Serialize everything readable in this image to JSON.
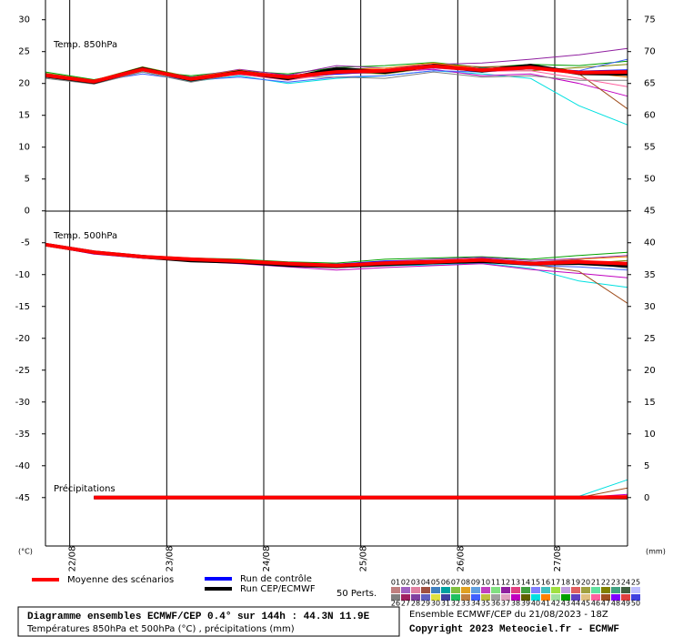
{
  "chart_data": {
    "type": "line",
    "title": "Diagramme ensembles ECMWF/CEP 0.4° sur 144h : 44.3N 11.9E",
    "subtitle": "Températures 850hPa et 500hPa (°C) , précipitations (mm)",
    "run_info": "Ensemble ECMWF/CEP du 21/08/2023 - 18Z",
    "copyright": "Copyright 2023 Meteociel.fr - ECMWF",
    "y_label": "(°C)",
    "y2_label": "(mm)",
    "x": [
      0,
      12,
      24,
      36,
      48,
      60,
      72,
      84,
      96,
      108,
      120,
      132,
      144
    ],
    "xlim": [
      0,
      144
    ],
    "xticks": [
      {
        "value": 6,
        "label": "22/08"
      },
      {
        "value": 30,
        "label": "23/08"
      },
      {
        "value": 54,
        "label": "24/08"
      },
      {
        "value": 78,
        "label": "25/08"
      },
      {
        "value": 102,
        "label": "26/08"
      },
      {
        "value": 126,
        "label": "27/08"
      }
    ],
    "ylim": [
      -52.6,
      33.1
    ],
    "yticks": [
      30,
      25,
      20,
      15,
      10,
      5,
      0,
      -5,
      -10,
      -15,
      -20,
      -25,
      -30,
      -35,
      -40,
      -45
    ],
    "y2lim": [
      -7.6,
      78.1
    ],
    "y2ticks": [
      75,
      70,
      65,
      60,
      55,
      50,
      45,
      40,
      35,
      30,
      25,
      20,
      15,
      10,
      5,
      0
    ],
    "panels": [
      {
        "label": "Temp. 850hPa",
        "series": [
          {
            "color": "#00a000",
            "values": [
              21.8,
              20.6,
              22.0,
              21.2,
              22.0,
              21.5,
              22.5,
              22.8,
              23.3,
              22.5,
              23.0,
              22.8,
              23.5
            ]
          },
          {
            "color": "#00e0e0",
            "values": [
              21.0,
              20.0,
              21.8,
              20.3,
              21.2,
              20.0,
              20.8,
              21.2,
              22.0,
              21.5,
              20.8,
              16.5,
              13.5
            ]
          },
          {
            "color": "#9020a0",
            "values": [
              21.5,
              20.4,
              22.5,
              21.0,
              22.2,
              21.3,
              22.8,
              22.4,
              23.0,
              23.2,
              23.8,
              24.5,
              25.5
            ]
          },
          {
            "color": "#c000c0",
            "values": [
              21.2,
              20.0,
              22.0,
              20.5,
              21.5,
              20.8,
              21.5,
              21.8,
              22.2,
              21.2,
              21.5,
              20.0,
              18.0
            ]
          },
          {
            "color": "#808000",
            "values": [
              21.6,
              20.5,
              22.6,
              21.0,
              22.0,
              20.6,
              21.8,
              21.5,
              22.5,
              22.0,
              22.0,
              22.5,
              23.0
            ]
          },
          {
            "color": "#4060ff",
            "values": [
              21.0,
              20.3,
              21.5,
              20.5,
              21.0,
              20.2,
              21.0,
              21.2,
              22.0,
              21.8,
              22.3,
              22.0,
              23.8
            ]
          },
          {
            "color": "#a05020",
            "values": [
              21.4,
              20.4,
              22.0,
              20.8,
              21.8,
              21.2,
              22.0,
              22.0,
              23.0,
              22.6,
              22.8,
              21.5,
              16.0
            ]
          },
          {
            "color": "#808080",
            "values": [
              20.8,
              19.9,
              21.8,
              20.2,
              21.5,
              21.0,
              21.0,
              20.8,
              21.8,
              21.0,
              21.2,
              20.5,
              20.5
            ]
          },
          {
            "color": "#ff8000",
            "values": [
              21.3,
              20.2,
              22.4,
              20.9,
              22.1,
              20.9,
              22.2,
              22.4,
              23.2,
              22.3,
              22.6,
              21.8,
              21.0
            ]
          },
          {
            "color": "#ff60a0",
            "values": [
              21.1,
              20.3,
              22.1,
              20.6,
              21.4,
              20.5,
              21.6,
              21.7,
              22.4,
              21.9,
              22.0,
              20.8,
              19.5
            ]
          },
          {
            "name": "Run de contrôle",
            "color": "#0000ff",
            "width": 3,
            "values": [
              21.2,
              20.3,
              22.2,
              20.8,
              21.6,
              21.1,
              21.6,
              22.0,
              22.6,
              22.2,
              22.4,
              21.8,
              22.0
            ]
          },
          {
            "name": "Run CEP/ECMWF",
            "color": "#000000",
            "width": 4,
            "values": [
              21.2,
              20.2,
              22.3,
              20.6,
              21.8,
              20.8,
              22.3,
              21.8,
              22.8,
              22.0,
              22.8,
              21.6,
              21.5
            ]
          },
          {
            "name": "Moyenne des scénarios",
            "color": "#ff0000",
            "width": 4,
            "values": [
              21.3,
              20.3,
              22.2,
              20.7,
              21.7,
              21.0,
              21.8,
              22.0,
              22.7,
              22.1,
              22.5,
              21.7,
              21.8
            ]
          }
        ]
      },
      {
        "label": "Temp. 500hPa",
        "series": [
          {
            "color": "#00a000",
            "values": [
              -5.3,
              -6.4,
              -7.0,
              -7.4,
              -7.6,
              -8.0,
              -8.2,
              -7.6,
              -7.4,
              -7.2,
              -7.6,
              -7.0,
              -6.5
            ]
          },
          {
            "color": "#00e0e0",
            "values": [
              -5.3,
              -6.7,
              -7.3,
              -7.8,
              -8.2,
              -8.5,
              -8.9,
              -8.6,
              -8.5,
              -8.2,
              -9.0,
              -11.0,
              -12.0
            ]
          },
          {
            "color": "#9020a0",
            "values": [
              -5.2,
              -6.5,
              -7.1,
              -7.5,
              -7.8,
              -8.1,
              -8.4,
              -7.9,
              -7.6,
              -7.3,
              -7.8,
              -7.5,
              -7.0
            ]
          },
          {
            "color": "#c000c0",
            "values": [
              -5.4,
              -6.8,
              -7.4,
              -7.9,
              -8.3,
              -8.8,
              -9.3,
              -8.9,
              -8.6,
              -8.3,
              -9.2,
              -9.8,
              -10.5
            ]
          },
          {
            "color": "#808000",
            "values": [
              -5.3,
              -6.6,
              -7.2,
              -7.5,
              -7.7,
              -8.2,
              -8.4,
              -8.0,
              -7.8,
              -7.6,
              -8.0,
              -8.3,
              -7.8
            ]
          },
          {
            "color": "#4060ff",
            "values": [
              -5.3,
              -6.5,
              -7.2,
              -7.7,
              -8.0,
              -8.4,
              -8.8,
              -8.5,
              -8.3,
              -8.0,
              -8.6,
              -8.8,
              -9.3
            ]
          },
          {
            "color": "#a05020",
            "values": [
              -5.2,
              -6.4,
              -7.1,
              -7.5,
              -7.8,
              -8.3,
              -8.5,
              -8.1,
              -7.9,
              -7.7,
              -8.4,
              -9.5,
              -14.5
            ]
          },
          {
            "color": "#808080",
            "values": [
              -5.4,
              -6.6,
              -7.3,
              -7.6,
              -7.9,
              -8.2,
              -8.6,
              -8.3,
              -8.2,
              -7.9,
              -8.5,
              -8.0,
              -9.0
            ]
          },
          {
            "color": "#ff8000",
            "values": [
              -5.3,
              -6.5,
              -7.2,
              -7.6,
              -7.9,
              -8.3,
              -8.5,
              -8.1,
              -7.9,
              -7.5,
              -8.1,
              -7.6,
              -7.2
            ]
          },
          {
            "color": "#ff60a0",
            "values": [
              -5.3,
              -6.6,
              -7.3,
              -7.7,
              -8.0,
              -8.4,
              -8.7,
              -8.3,
              -8.1,
              -7.8,
              -8.4,
              -8.1,
              -8.8
            ]
          },
          {
            "name": "Run de contrôle",
            "color": "#0000ff",
            "width": 3,
            "values": [
              -5.3,
              -6.6,
              -7.3,
              -7.7,
              -8.0,
              -8.4,
              -8.5,
              -8.0,
              -8.1,
              -7.6,
              -8.2,
              -7.9,
              -8.5
            ]
          },
          {
            "name": "Run CEP/ECMWF",
            "color": "#000000",
            "width": 4,
            "values": [
              -5.3,
              -6.5,
              -7.2,
              -7.8,
              -8.0,
              -8.5,
              -8.7,
              -8.4,
              -8.1,
              -7.9,
              -8.3,
              -8.2,
              -8.6
            ]
          },
          {
            "name": "Moyenne des scénarios",
            "color": "#ff0000",
            "width": 4,
            "values": [
              -5.3,
              -6.5,
              -7.2,
              -7.6,
              -7.9,
              -8.3,
              -8.6,
              -8.2,
              -8.0,
              -7.7,
              -8.3,
              -8.0,
              -8.3
            ]
          }
        ]
      },
      {
        "label": "Précipitations",
        "series": [
          {
            "color": "#00e0e0",
            "axis": "y2",
            "values": [
              null,
              0,
              0,
              0,
              0,
              0,
              0,
              0,
              0,
              0,
              0,
              0.2,
              2.8
            ]
          },
          {
            "color": "#a05020",
            "axis": "y2",
            "values": [
              null,
              0,
              0,
              0,
              0,
              0,
              0,
              0,
              0,
              0,
              0,
              0,
              1.5
            ]
          },
          {
            "color": "#c000c0",
            "axis": "y2",
            "values": [
              null,
              0,
              0,
              0,
              0,
              0,
              0,
              0,
              0,
              0,
              0,
              0,
              0.5
            ]
          },
          {
            "color": "#00a000",
            "axis": "y2",
            "values": [
              null,
              0,
              0,
              0,
              0,
              0,
              0,
              0,
              0,
              0,
              0,
              0,
              0
            ]
          },
          {
            "name": "Run de contrôle",
            "color": "#0000ff",
            "width": 3,
            "axis": "y2",
            "values": [
              null,
              0,
              0,
              0,
              0,
              0,
              0,
              0,
              0,
              0,
              0,
              0,
              0
            ]
          },
          {
            "name": "Run CEP/ECMWF",
            "color": "#000000",
            "width": 4,
            "axis": "y2",
            "values": [
              null,
              0,
              0,
              0,
              0,
              0,
              0,
              0,
              0,
              0,
              0,
              0,
              0
            ]
          },
          {
            "name": "Moyenne des scénarios",
            "color": "#ff0000",
            "width": 4,
            "axis": "y2",
            "values": [
              null,
              0,
              0,
              0,
              0,
              0,
              0,
              0,
              0,
              0,
              0,
              0,
              0.1
            ]
          }
        ]
      }
    ],
    "perts_label": "50 Perts.",
    "perts": [
      {
        "name": "01",
        "color": "#c08080"
      },
      {
        "name": "02",
        "color": "#a060c0"
      },
      {
        "name": "03",
        "color": "#e080a0"
      },
      {
        "name": "04",
        "color": "#a05040"
      },
      {
        "name": "05",
        "color": "#4080c0"
      },
      {
        "name": "06",
        "color": "#00a0a0"
      },
      {
        "name": "07",
        "color": "#80c040"
      },
      {
        "name": "08",
        "color": "#e0a020"
      },
      {
        "name": "09",
        "color": "#60a0e0"
      },
      {
        "name": "10",
        "color": "#c040c0"
      },
      {
        "name": "11",
        "color": "#80e080"
      },
      {
        "name": "12",
        "color": "#9020a0"
      },
      {
        "name": "13",
        "color": "#e04080"
      },
      {
        "name": "14",
        "color": "#40a040"
      },
      {
        "name": "15",
        "color": "#8080ff"
      },
      {
        "name": "16",
        "color": "#40c0c0"
      },
      {
        "name": "17",
        "color": "#a0e040"
      },
      {
        "name": "18",
        "color": "#c0a0e0"
      },
      {
        "name": "19",
        "color": "#e06060"
      },
      {
        "name": "20",
        "color": "#a0a040"
      },
      {
        "name": "21",
        "color": "#60e0a0"
      },
      {
        "name": "22",
        "color": "#808000"
      },
      {
        "name": "23",
        "color": "#40a080"
      },
      {
        "name": "24",
        "color": "#406040"
      },
      {
        "name": "25",
        "color": "#c0c0ff"
      },
      {
        "name": "26",
        "color": "#808080"
      },
      {
        "name": "27",
        "color": "#a02060"
      },
      {
        "name": "28",
        "color": "#8040a0"
      },
      {
        "name": "29",
        "color": "#6060c0"
      },
      {
        "name": "30",
        "color": "#e0e040"
      },
      {
        "name": "31",
        "color": "#4040a0"
      },
      {
        "name": "32",
        "color": "#20c060"
      },
      {
        "name": "33",
        "color": "#c08040"
      },
      {
        "name": "34",
        "color": "#4060ff"
      },
      {
        "name": "35",
        "color": "#c0c040"
      },
      {
        "name": "36",
        "color": "#a0a0a0"
      },
      {
        "name": "37",
        "color": "#e0a0c0"
      },
      {
        "name": "38",
        "color": "#c000c0"
      },
      {
        "name": "39",
        "color": "#606000"
      },
      {
        "name": "40",
        "color": "#00e0e0"
      },
      {
        "name": "41",
        "color": "#ff8000"
      },
      {
        "name": "42",
        "color": "#a0e0a0"
      },
      {
        "name": "43",
        "color": "#00a000"
      },
      {
        "name": "44",
        "color": "#6040c0"
      },
      {
        "name": "45",
        "color": "#e0c080"
      },
      {
        "name": "46",
        "color": "#ff60a0"
      },
      {
        "name": "47",
        "color": "#a05020"
      },
      {
        "name": "48",
        "color": "#8000ff"
      },
      {
        "name": "49",
        "color": "#e04040"
      },
      {
        "name": "50",
        "color": "#4040e0"
      }
    ]
  }
}
